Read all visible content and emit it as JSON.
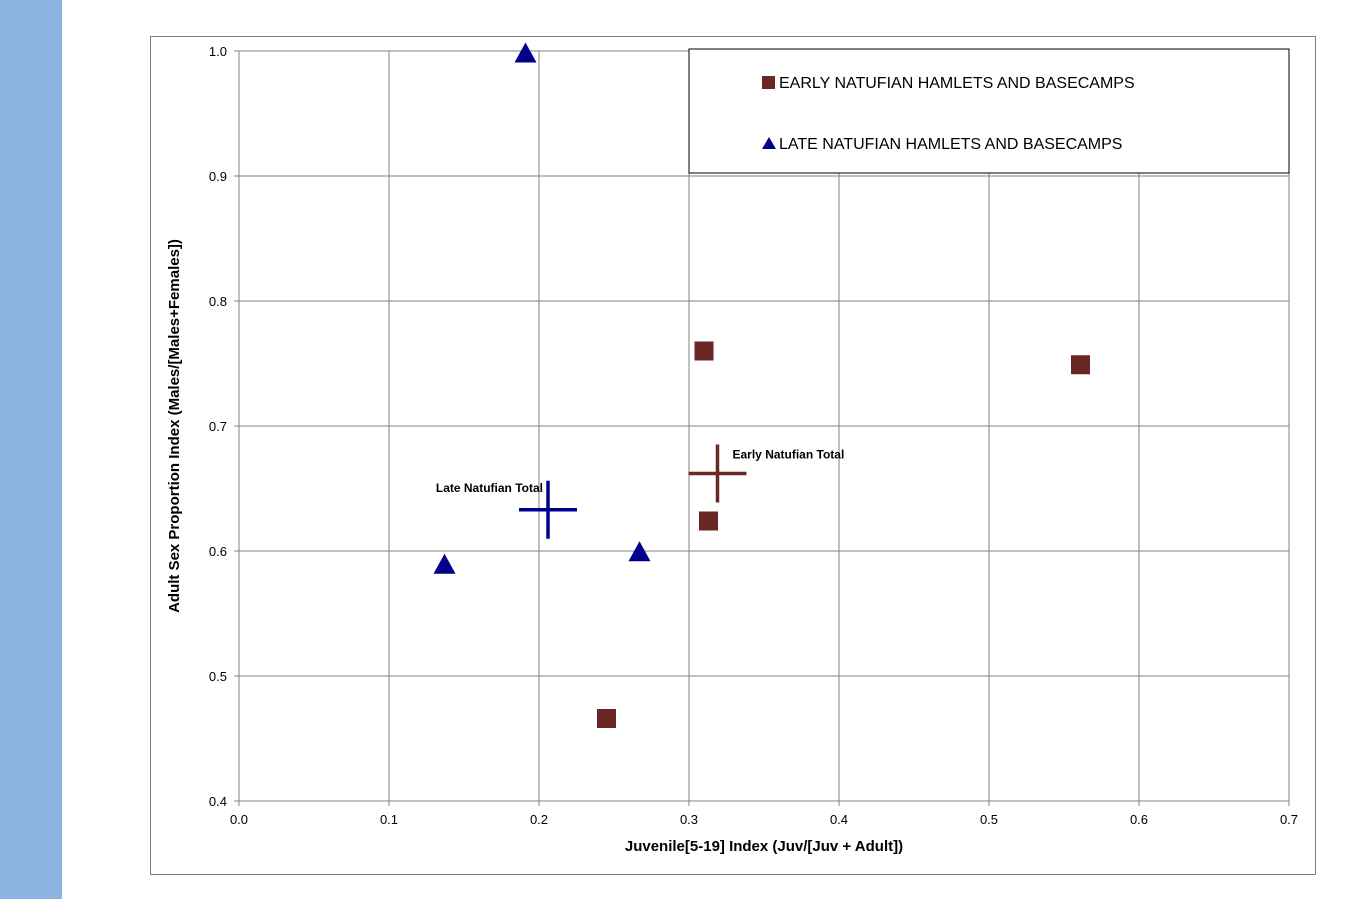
{
  "chart_data": {
    "type": "scatter",
    "xlabel": "Juvenile[5-19] Index (Juv/[Juv + Adult])",
    "ylabel": "Adult Sex Proportion Index (Males/[Males+Females])",
    "xlim": [
      0.0,
      0.7
    ],
    "ylim": [
      0.4,
      1.0
    ],
    "x_ticks": [
      "0.0",
      "0.1",
      "0.2",
      "0.3",
      "0.4",
      "0.5",
      "0.6",
      "0.7"
    ],
    "y_ticks": [
      "0.4",
      "0.5",
      "0.6",
      "0.7",
      "0.8",
      "0.9",
      "1.0"
    ],
    "grid": true,
    "legend_position": "top-right",
    "series": [
      {
        "name": "EARLY NATUFIAN HAMLETS AND BASECAMPS",
        "marker": "square",
        "color": "#6b2626",
        "points": [
          [
            0.31,
            0.76
          ],
          [
            0.561,
            0.749
          ],
          [
            0.313,
            0.624
          ],
          [
            0.245,
            0.466
          ]
        ]
      },
      {
        "name": "LATE NATUFIAN HAMLETS AND BASECAMPS",
        "marker": "triangle",
        "color": "#00008b",
        "points": [
          [
            0.191,
            0.998
          ],
          [
            0.137,
            0.589
          ],
          [
            0.267,
            0.599
          ]
        ]
      }
    ],
    "annotations": [
      {
        "label": "Early Natufian Total",
        "x": 0.319,
        "y": 0.662,
        "marker": "cross",
        "color": "#6b2626"
      },
      {
        "label": "Late Natufian Total",
        "x": 0.206,
        "y": 0.633,
        "marker": "cross",
        "color": "#00008b"
      }
    ]
  }
}
